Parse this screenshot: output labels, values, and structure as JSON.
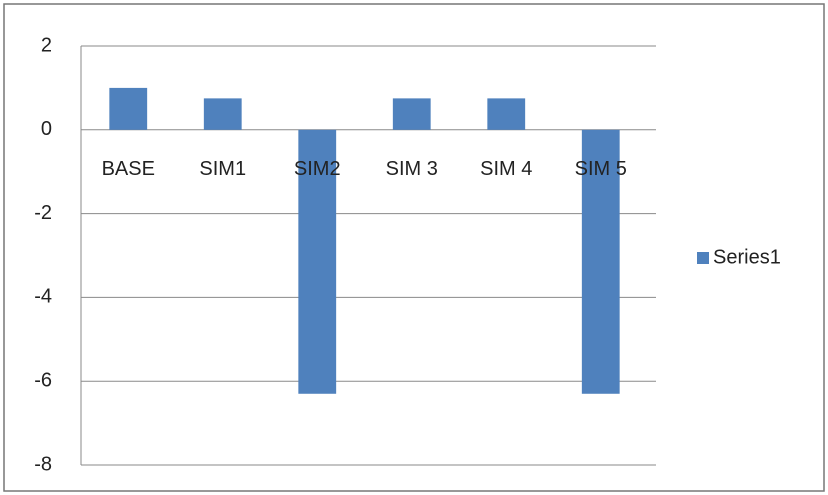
{
  "chart_data": {
    "type": "bar",
    "categories": [
      "BASE",
      "SIM1",
      "SIM2",
      "SIM 3",
      "SIM 4",
      "SIM 5"
    ],
    "series": [
      {
        "name": "Series1",
        "color": "#4f81bd",
        "values": [
          1.0,
          0.75,
          -6.3,
          0.75,
          0.75,
          -6.3
        ]
      }
    ],
    "ylim": [
      -8,
      2
    ],
    "yticks": [
      -8,
      -6,
      -4,
      -2,
      0,
      2
    ],
    "grid": true,
    "legend": "right"
  }
}
